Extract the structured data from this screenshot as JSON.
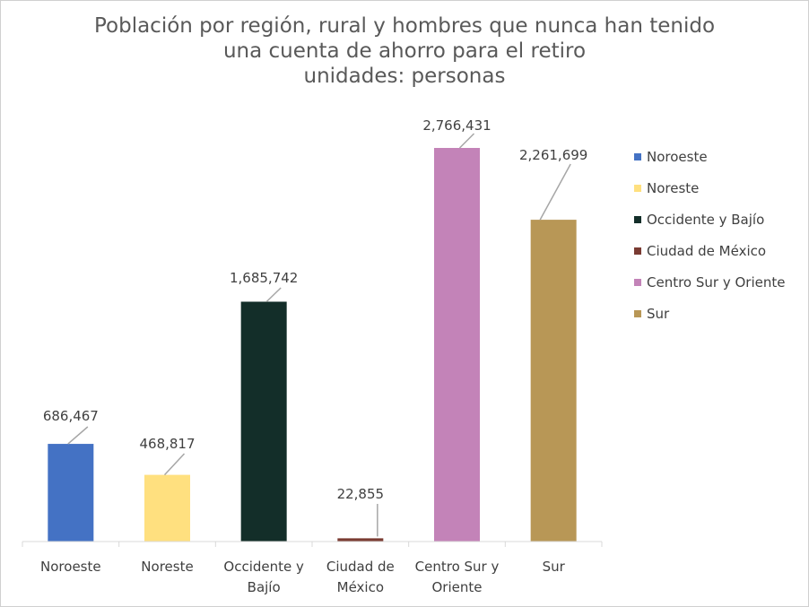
{
  "chart_data": {
    "type": "bar",
    "title_lines": [
      "Población por región, rural y hombres que nunca han tenido",
      "una cuenta de ahorro para el retiro",
      "unidades: personas"
    ],
    "categories": [
      [
        "Noroeste"
      ],
      [
        "Noreste"
      ],
      [
        "Occidente y",
        "Bajío"
      ],
      [
        "Ciudad de",
        "México"
      ],
      [
        "Centro Sur y",
        "Oriente"
      ],
      [
        "Sur"
      ]
    ],
    "series": [
      {
        "name": "Noroeste",
        "value": 686467,
        "label": "686,467",
        "color": "#4472C4"
      },
      {
        "name": "Noreste",
        "value": 468817,
        "label": "468,817",
        "color": "#FFE07F"
      },
      {
        "name": "Occidente y Bajío",
        "value": 1685742,
        "label": "1,685,742",
        "color": "#132E29"
      },
      {
        "name": "Ciudad de México",
        "value": 22855,
        "label": "22,855",
        "color": "#7A3B32"
      },
      {
        "name": "Centro Sur y Oriente",
        "value": 2766431,
        "label": "2,766,431",
        "color": "#C383B8"
      },
      {
        "name": "Sur",
        "value": 2261699,
        "label": "2,261,699",
        "color": "#B89756"
      }
    ],
    "ylim": [
      0,
      2766431
    ],
    "grid": false,
    "legend_position": "right"
  }
}
